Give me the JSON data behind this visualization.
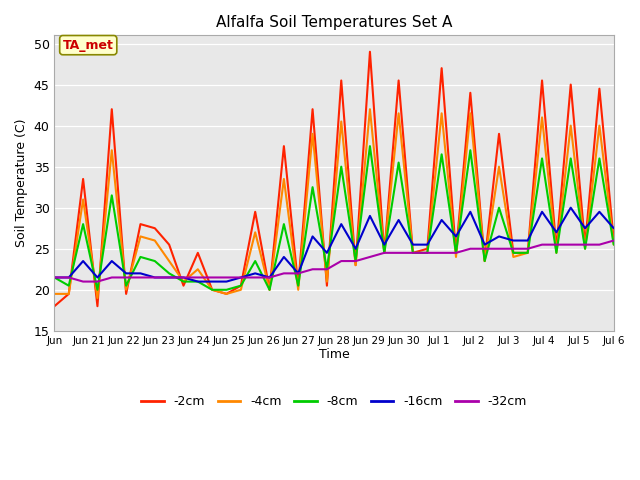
{
  "title": "Alfalfa Soil Temperatures Set A",
  "xlabel": "Time",
  "ylabel": "Soil Temperature (C)",
  "ylim": [
    15,
    51
  ],
  "yticks": [
    15,
    20,
    25,
    30,
    35,
    40,
    45,
    50
  ],
  "fig_bg_color": "#ffffff",
  "plot_bg_color": "#e8e8e8",
  "annotation_label": "TA_met",
  "annotation_box_color": "#ffffcc",
  "annotation_text_color": "#cc0000",
  "series": {
    "neg2cm": {
      "color": "#ff2200",
      "label": "-2cm",
      "lw": 1.5
    },
    "neg4cm": {
      "color": "#ff8800",
      "label": "-4cm",
      "lw": 1.5
    },
    "neg8cm": {
      "color": "#00cc00",
      "label": "-8cm",
      "lw": 1.5
    },
    "neg16cm": {
      "color": "#0000cc",
      "label": "-16cm",
      "lw": 1.5
    },
    "neg32cm": {
      "color": "#aa00aa",
      "label": "-32cm",
      "lw": 1.5
    }
  },
  "xtick_labels": [
    "Jun",
    "Jun 21",
    "Jun 22",
    "Jun 23",
    "Jun 24",
    "Jun 25",
    "Jun 26",
    "Jun 27",
    "Jun 28",
    "Jun 29",
    "Jun 30",
    "Jul 1",
    "Jul 2",
    "Jul 3",
    "Jul 4",
    "Jul 5",
    "Jul 6"
  ],
  "neg2cm_vals": [
    18.0,
    19.5,
    33.5,
    18.0,
    42.0,
    19.5,
    28.0,
    27.5,
    25.5,
    20.5,
    24.5,
    20.0,
    19.5,
    20.5,
    29.5,
    20.0,
    37.5,
    20.5,
    42.0,
    20.5,
    45.5,
    23.0,
    49.0,
    24.5,
    45.5,
    24.5,
    25.0,
    47.0,
    24.5,
    44.0,
    23.5,
    39.0,
    24.5,
    24.5,
    45.5,
    25.0,
    45.0,
    25.5,
    44.5,
    26.0
  ],
  "neg4cm_vals": [
    19.5,
    19.5,
    31.0,
    19.0,
    37.0,
    20.0,
    26.5,
    26.0,
    23.5,
    21.0,
    22.5,
    20.0,
    19.5,
    20.0,
    27.0,
    20.0,
    33.5,
    20.0,
    39.0,
    21.0,
    40.5,
    23.0,
    42.0,
    24.5,
    41.5,
    24.5,
    24.5,
    41.5,
    24.0,
    41.5,
    23.5,
    35.0,
    24.0,
    24.5,
    41.0,
    24.5,
    40.0,
    25.0,
    40.0,
    25.5
  ],
  "neg8cm_vals": [
    21.5,
    20.5,
    28.0,
    20.0,
    31.5,
    20.5,
    24.0,
    23.5,
    22.0,
    21.0,
    21.0,
    20.0,
    20.0,
    20.5,
    23.5,
    20.0,
    28.0,
    20.5,
    32.5,
    22.5,
    35.0,
    23.5,
    37.5,
    24.5,
    35.5,
    24.5,
    24.5,
    36.5,
    24.5,
    37.0,
    23.5,
    30.0,
    24.5,
    24.5,
    36.0,
    24.5,
    36.0,
    25.0,
    36.0,
    25.5
  ],
  "neg16cm_vals": [
    21.5,
    21.5,
    23.5,
    21.5,
    23.5,
    22.0,
    22.0,
    21.5,
    21.5,
    21.5,
    21.0,
    21.0,
    21.0,
    21.5,
    22.0,
    21.5,
    24.0,
    22.0,
    26.5,
    24.5,
    28.0,
    25.0,
    29.0,
    25.5,
    28.5,
    25.5,
    25.5,
    28.5,
    26.5,
    29.5,
    25.5,
    26.5,
    26.0,
    26.0,
    29.5,
    27.0,
    30.0,
    27.5,
    29.5,
    27.5
  ],
  "neg32cm_vals": [
    21.5,
    21.5,
    21.0,
    21.0,
    21.5,
    21.5,
    21.5,
    21.5,
    21.5,
    21.5,
    21.5,
    21.5,
    21.5,
    21.5,
    21.5,
    21.5,
    22.0,
    22.0,
    22.5,
    22.5,
    23.5,
    23.5,
    24.0,
    24.5,
    24.5,
    24.5,
    24.5,
    24.5,
    24.5,
    25.0,
    25.0,
    25.0,
    25.0,
    25.0,
    25.5,
    25.5,
    25.5,
    25.5,
    25.5,
    26.0
  ]
}
